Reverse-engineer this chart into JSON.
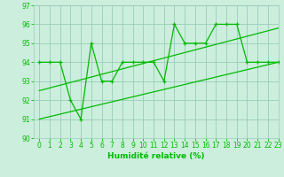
{
  "x": [
    0,
    1,
    2,
    3,
    4,
    5,
    6,
    7,
    8,
    9,
    10,
    11,
    12,
    13,
    14,
    15,
    16,
    17,
    18,
    19,
    20,
    21,
    22,
    23
  ],
  "y_main": [
    94,
    94,
    94,
    92,
    91,
    95,
    93,
    93,
    94,
    94,
    94,
    94,
    93,
    96,
    95,
    95,
    95,
    96,
    96,
    96,
    94,
    94,
    94,
    94
  ],
  "trend1_x": [
    0,
    23
  ],
  "trend1_y": [
    92.5,
    95.8
  ],
  "trend2_x": [
    0,
    23
  ],
  "trend2_y": [
    91.0,
    94.0
  ],
  "line_color": "#00bb00",
  "bg_color": "#cceedd",
  "grid_color": "#99ccbb",
  "xlabel": "Humidité relative (%)",
  "ylim": [
    90,
    97
  ],
  "xlim": [
    -0.5,
    23
  ],
  "yticks": [
    90,
    91,
    92,
    93,
    94,
    95,
    96,
    97
  ]
}
